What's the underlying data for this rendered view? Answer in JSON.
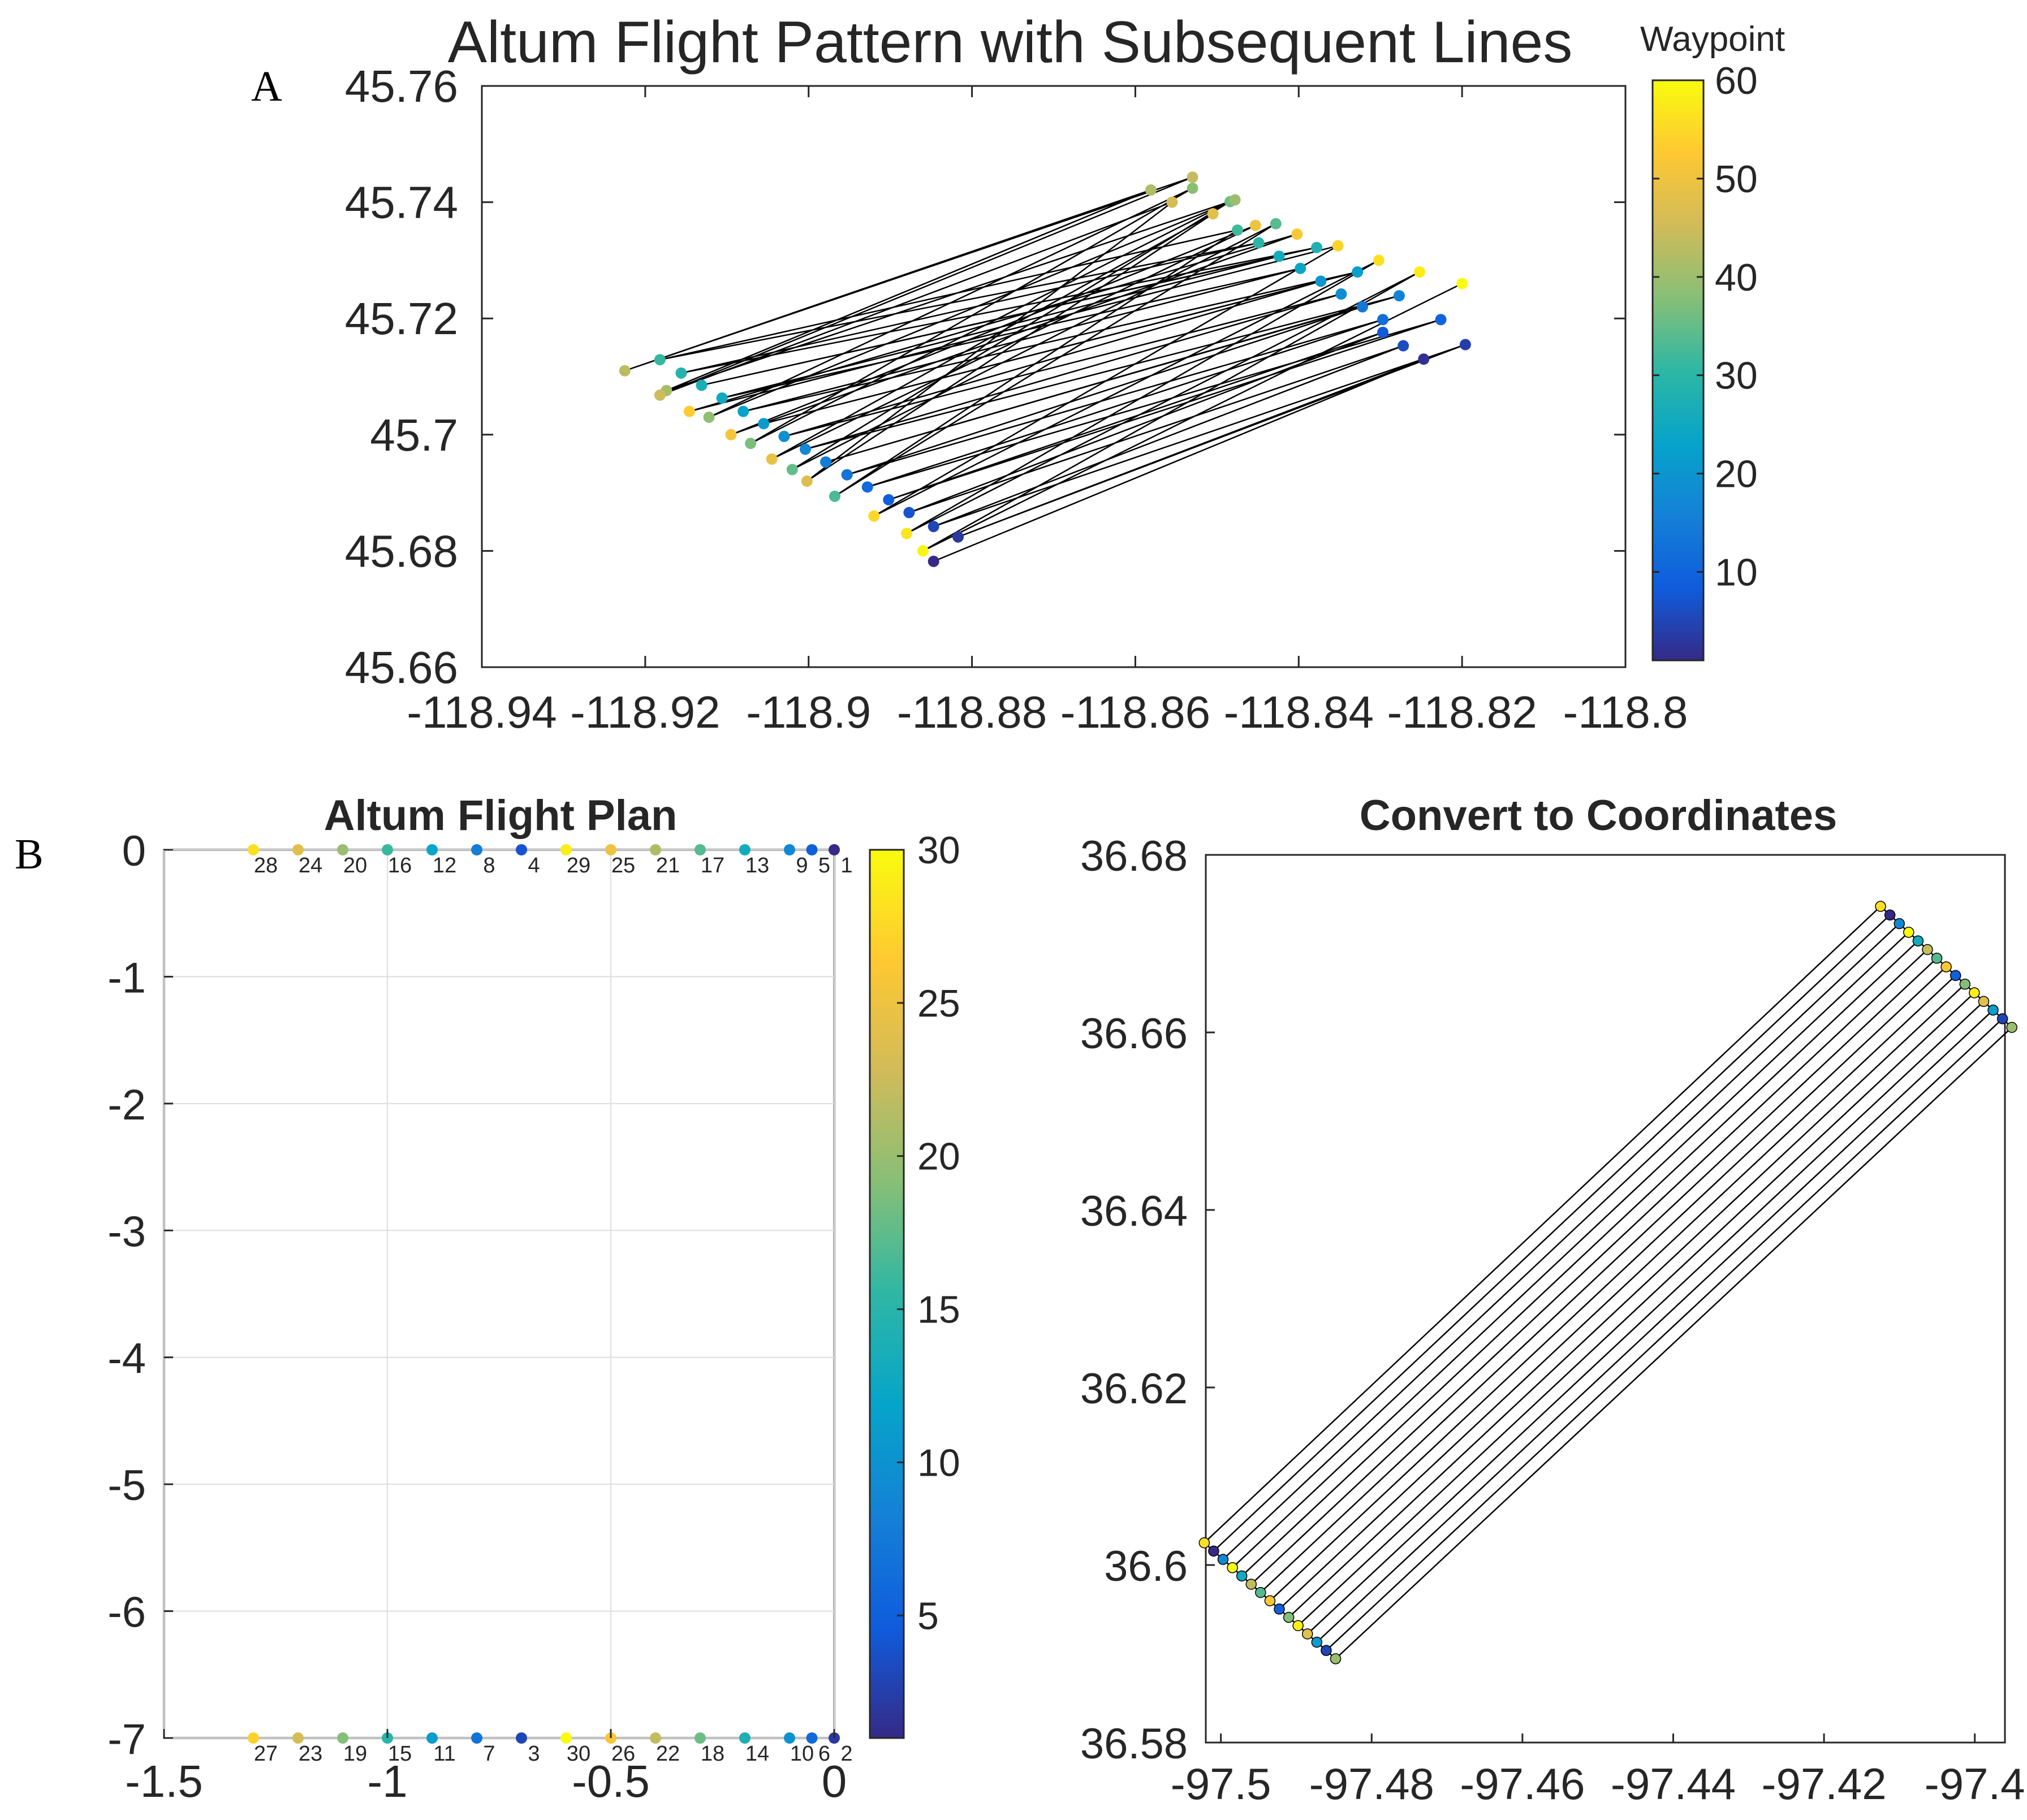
{
  "panel_labels": {
    "a": "A",
    "b": "B"
  },
  "colors": {
    "parula": [
      "#352a87",
      "#0f5cdd",
      "#1481d6",
      "#06a4ca",
      "#2eb7a4",
      "#87bf77",
      "#d1bb59",
      "#fec832",
      "#f9fb0e"
    ],
    "line": "#000000",
    "axis": "#262626",
    "grid": "#dedede"
  },
  "chart_data": [
    {
      "id": "A",
      "type": "scatter",
      "title": "Altum Flight Pattern with Subsequent Lines",
      "xlabel": "",
      "ylabel": "",
      "xlim": [
        -118.94,
        -118.8
      ],
      "ylim": [
        45.66,
        45.76
      ],
      "xticks": [
        "-118.94",
        "-118.92",
        "-118.9",
        "-118.88",
        "-118.86",
        "-118.84",
        "-118.82",
        "-118.8"
      ],
      "yticks": [
        "45.76",
        "45.74",
        "45.72",
        "45.7",
        "45.68",
        "45.66"
      ],
      "colorbar": {
        "label": "Waypoint",
        "min": 1,
        "max": 60,
        "ticks": [
          "60",
          "50",
          "40",
          "30",
          "20",
          "10"
        ]
      },
      "grid": false,
      "lines_between": "subsequent waypoints joined by straight black lines",
      "points": [
        {
          "waypoint": 1,
          "x": -118.8847,
          "y": 45.6782
        },
        {
          "waypoint": 2,
          "x": -118.8247,
          "y": 45.713
        },
        {
          "waypoint": 3,
          "x": -118.8817,
          "y": 45.6824
        },
        {
          "waypoint": 4,
          "x": -118.8196,
          "y": 45.7155
        },
        {
          "waypoint": 5,
          "x": -118.8847,
          "y": 45.6842
        },
        {
          "waypoint": 6,
          "x": -118.8272,
          "y": 45.7153
        },
        {
          "waypoint": 7,
          "x": -118.8877,
          "y": 45.6866
        },
        {
          "waypoint": 8,
          "x": -118.8297,
          "y": 45.7176
        },
        {
          "waypoint": 9,
          "x": -118.8902,
          "y": 45.6888
        },
        {
          "waypoint": 10,
          "x": -118.8226,
          "y": 45.7198
        },
        {
          "waypoint": 11,
          "x": -118.8928,
          "y": 45.691
        },
        {
          "waypoint": 12,
          "x": -118.8297,
          "y": 45.7198
        },
        {
          "waypoint": 13,
          "x": -118.8953,
          "y": 45.6931
        },
        {
          "waypoint": 14,
          "x": -118.8322,
          "y": 45.722
        },
        {
          "waypoint": 15,
          "x": -118.8979,
          "y": 45.6953
        },
        {
          "waypoint": 16,
          "x": -118.8277,
          "y": 45.7239
        },
        {
          "waypoint": 17,
          "x": -118.9004,
          "y": 45.6975
        },
        {
          "waypoint": 18,
          "x": -118.8348,
          "y": 45.7242
        },
        {
          "waypoint": 19,
          "x": -118.903,
          "y": 45.6997
        },
        {
          "waypoint": 20,
          "x": -118.8373,
          "y": 45.7264
        },
        {
          "waypoint": 21,
          "x": -118.9055,
          "y": 45.7019
        },
        {
          "waypoint": 22,
          "x": -118.8328,
          "y": 45.728
        },
        {
          "waypoint": 23,
          "x": -118.908,
          "y": 45.704
        },
        {
          "waypoint": 24,
          "x": -118.8398,
          "y": 45.7286
        },
        {
          "waypoint": 25,
          "x": -118.9106,
          "y": 45.7063
        },
        {
          "waypoint": 26,
          "x": -118.8424,
          "y": 45.7307
        },
        {
          "waypoint": 27,
          "x": -118.9131,
          "y": 45.7085
        },
        {
          "waypoint": 28,
          "x": -118.8378,
          "y": 45.7322
        },
        {
          "waypoint": 29,
          "x": -118.9156,
          "y": 45.7106
        },
        {
          "waypoint": 30,
          "x": -118.8449,
          "y": 45.733
        },
        {
          "waypoint": 31,
          "x": -118.9182,
          "y": 45.7129
        },
        {
          "waypoint": 32,
          "x": -118.8475,
          "y": 45.7352
        },
        {
          "waypoint": 33,
          "x": -118.8968,
          "y": 45.6894
        },
        {
          "waypoint": 34,
          "x": -118.8428,
          "y": 45.7363
        },
        {
          "waypoint": 35,
          "x": -118.902,
          "y": 45.694
        },
        {
          "waypoint": 36,
          "x": -118.8484,
          "y": 45.7401
        },
        {
          "waypoint": 37,
          "x": -118.9071,
          "y": 45.6985
        },
        {
          "waypoint": 38,
          "x": -118.853,
          "y": 45.7424
        },
        {
          "waypoint": 39,
          "x": -118.9122,
          "y": 45.703
        },
        {
          "waypoint": 40,
          "x": -118.8478,
          "y": 45.7404
        },
        {
          "waypoint": 41,
          "x": -118.9174,
          "y": 45.7076
        },
        {
          "waypoint": 42,
          "x": -118.8581,
          "y": 45.7421
        },
        {
          "waypoint": 43,
          "x": -118.9225,
          "y": 45.711
        },
        {
          "waypoint": 44,
          "x": -118.853,
          "y": 45.7443
        },
        {
          "waypoint": 45,
          "x": -118.9182,
          "y": 45.7068
        },
        {
          "waypoint": 46,
          "x": -118.8555,
          "y": 45.74
        },
        {
          "waypoint": 47,
          "x": -118.9002,
          "y": 45.692
        },
        {
          "waypoint": 48,
          "x": -118.8505,
          "y": 45.738
        },
        {
          "waypoint": 49,
          "x": -118.9045,
          "y": 45.6958
        },
        {
          "waypoint": 50,
          "x": -118.8453,
          "y": 45.736
        },
        {
          "waypoint": 51,
          "x": -118.9095,
          "y": 45.7
        },
        {
          "waypoint": 52,
          "x": -118.8402,
          "y": 45.7345
        },
        {
          "waypoint": 53,
          "x": -118.9146,
          "y": 45.704
        },
        {
          "waypoint": 54,
          "x": -118.8352,
          "y": 45.7325
        },
        {
          "waypoint": 55,
          "x": -118.892,
          "y": 45.686
        },
        {
          "waypoint": 56,
          "x": -118.8302,
          "y": 45.73
        },
        {
          "waypoint": 57,
          "x": -118.888,
          "y": 45.683
        },
        {
          "waypoint": 58,
          "x": -118.8252,
          "y": 45.728
        },
        {
          "waypoint": 59,
          "x": -118.886,
          "y": 45.68
        },
        {
          "waypoint": 60,
          "x": -118.82,
          "y": 45.726
        }
      ]
    },
    {
      "id": "B-left",
      "type": "scatter",
      "title": "Altum Flight Plan",
      "xlabel": "",
      "ylabel": "",
      "xlim": [
        -1.5,
        0
      ],
      "ylim": [
        -7,
        0
      ],
      "xticks": [
        "-1.5",
        "-1",
        "-0.5",
        "0"
      ],
      "yticks": [
        "0",
        "-1",
        "-2",
        "-3",
        "-4",
        "-5",
        "-6",
        "-7"
      ],
      "colorbar": {
        "min": 1,
        "max": 30,
        "ticks": [
          "30",
          "25",
          "20",
          "15",
          "10",
          "5"
        ]
      },
      "grid": true,
      "top_row": [
        {
          "label": "28",
          "x": -1.3,
          "c": 28
        },
        {
          "label": "24",
          "x": -1.2,
          "c": 24
        },
        {
          "label": "20",
          "x": -1.1,
          "c": 20
        },
        {
          "label": "16",
          "x": -1.0,
          "c": 16
        },
        {
          "label": "12",
          "x": -0.9,
          "c": 12
        },
        {
          "label": "8",
          "x": -0.8,
          "c": 8
        },
        {
          "label": "4",
          "x": -0.7,
          "c": 4
        },
        {
          "label": "29",
          "x": -0.6,
          "c": 29
        },
        {
          "label": "25",
          "x": -0.5,
          "c": 25
        },
        {
          "label": "21",
          "x": -0.4,
          "c": 21
        },
        {
          "label": "17",
          "x": -0.3,
          "c": 17
        },
        {
          "label": "13",
          "x": -0.2,
          "c": 13
        },
        {
          "label": "9",
          "x": -0.1,
          "c": 9
        },
        {
          "label": "5",
          "x": 0.0,
          "c": 5
        },
        {
          "label": "1",
          "x": 0.0,
          "c": 1
        }
      ],
      "bottom_row": [
        {
          "label": "27",
          "x": -1.3,
          "c": 27
        },
        {
          "label": "23",
          "x": -1.2,
          "c": 23
        },
        {
          "label": "19",
          "x": -1.1,
          "c": 19
        },
        {
          "label": "15",
          "x": -1.0,
          "c": 15
        },
        {
          "label": "11",
          "x": -0.9,
          "c": 11
        },
        {
          "label": "7",
          "x": -0.8,
          "c": 7
        },
        {
          "label": "3",
          "x": -0.7,
          "c": 3
        },
        {
          "label": "30",
          "x": -0.6,
          "c": 30
        },
        {
          "label": "26",
          "x": -0.5,
          "c": 26
        },
        {
          "label": "22",
          "x": -0.4,
          "c": 22
        },
        {
          "label": "18",
          "x": -0.3,
          "c": 18
        },
        {
          "label": "14",
          "x": -0.2,
          "c": 14
        },
        {
          "label": "10",
          "x": -0.1,
          "c": 10
        },
        {
          "label": "6",
          "x": 0.0,
          "c": 6
        },
        {
          "label": "2",
          "x": 0.0,
          "c": 2
        }
      ]
    },
    {
      "id": "B-right",
      "type": "scatter",
      "title": "Convert to Coordinates",
      "xlabel": "",
      "ylabel": "",
      "xlim": [
        -97.502,
        -97.396
      ],
      "ylim": [
        36.58,
        36.68
      ],
      "xticks": [
        "-97.5",
        "-97.48",
        "-97.46",
        "-97.44",
        "-97.42",
        "-97.4"
      ],
      "yticks": [
        "36.68",
        "36.66",
        "36.64",
        "36.62",
        "36.6",
        "36.58"
      ],
      "grid": false,
      "line_pairs": 14,
      "left_end": {
        "x0": -97.5022,
        "y0": 36.6025,
        "dx": 0.001244,
        "dy": -0.000933
      },
      "right_end": {
        "x0": -97.4125,
        "y0": 36.6742,
        "dx": 0.001244,
        "dy": -0.000974
      },
      "point_colors": [
        28,
        1,
        9,
        30,
        13,
        22,
        17,
        26,
        5,
        19,
        29,
        24,
        11,
        3,
        20
      ]
    }
  ]
}
